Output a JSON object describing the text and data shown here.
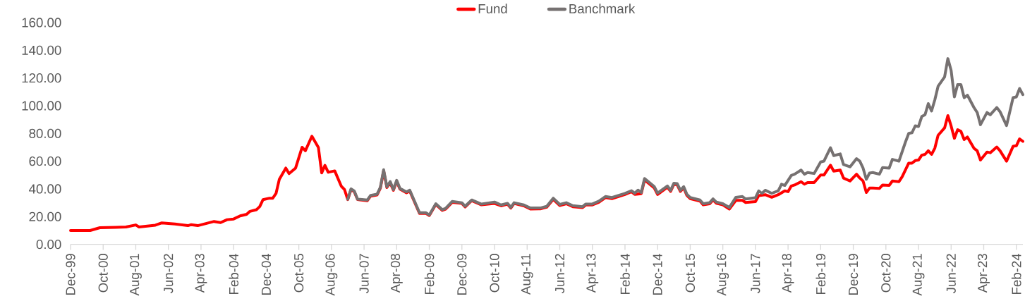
{
  "chart_data": {
    "type": "line",
    "legend": "top",
    "xlim": [
      "1999-12",
      "2024-04"
    ],
    "xticks": [
      {
        "value": "1999-12",
        "label": "Dec-99"
      },
      {
        "value": "2000-10",
        "label": "Oct-00"
      },
      {
        "value": "2001-08",
        "label": "Aug-01"
      },
      {
        "value": "2002-06",
        "label": "Jun-02"
      },
      {
        "value": "2003-04",
        "label": "Apr-03"
      },
      {
        "value": "2004-02",
        "label": "Feb-04"
      },
      {
        "value": "2004-12",
        "label": "Dec-04"
      },
      {
        "value": "2005-10",
        "label": "Oct-05"
      },
      {
        "value": "2006-08",
        "label": "Aug-06"
      },
      {
        "value": "2007-06",
        "label": "Jun-07"
      },
      {
        "value": "2008-04",
        "label": "Apr-08"
      },
      {
        "value": "2009-02",
        "label": "Feb-09"
      },
      {
        "value": "2009-12",
        "label": "Dec-09"
      },
      {
        "value": "2010-10",
        "label": "Oct-10"
      },
      {
        "value": "2011-08",
        "label": "Aug-11"
      },
      {
        "value": "2012-06",
        "label": "Jun-12"
      },
      {
        "value": "2013-04",
        "label": "Apr-13"
      },
      {
        "value": "2014-02",
        "label": "Feb-14"
      },
      {
        "value": "2014-12",
        "label": "Dec-14"
      },
      {
        "value": "2015-10",
        "label": "Oct-15"
      },
      {
        "value": "2016-08",
        "label": "Aug-16"
      },
      {
        "value": "2017-06",
        "label": "Jun-17"
      },
      {
        "value": "2018-04",
        "label": "Apr-18"
      },
      {
        "value": "2019-02",
        "label": "Feb-19"
      },
      {
        "value": "2019-12",
        "label": "Dec-19"
      },
      {
        "value": "2020-10",
        "label": "Oct-20"
      },
      {
        "value": "2021-08",
        "label": "Aug-21"
      },
      {
        "value": "2022-06",
        "label": "Jun-22"
      },
      {
        "value": "2023-04",
        "label": "Apr-23"
      },
      {
        "value": "2024-02",
        "label": "Feb-24"
      }
    ],
    "ylim": [
      0,
      160
    ],
    "yticks": [
      {
        "value": 0,
        "label": "0.00"
      },
      {
        "value": 20,
        "label": "20.00"
      },
      {
        "value": 40,
        "label": "40.00"
      },
      {
        "value": 60,
        "label": "60.00"
      },
      {
        "value": 80,
        "label": "80.00"
      },
      {
        "value": 100,
        "label": "100.00"
      },
      {
        "value": 120,
        "label": "120.00"
      },
      {
        "value": 140,
        "label": "140.00"
      },
      {
        "value": 160,
        "label": "160.00"
      }
    ],
    "series": [
      {
        "name": "Fund",
        "color": "#ff0000",
        "x": [
          "1999-12",
          "2000-06",
          "2000-09",
          "2001-02",
          "2001-05",
          "2001-08",
          "2001-09",
          "2002-02",
          "2002-04",
          "2002-08",
          "2002-12",
          "2003-01",
          "2003-03",
          "2003-08",
          "2003-10",
          "2003-12",
          "2004-02",
          "2004-04",
          "2004-06",
          "2004-07",
          "2004-09",
          "2004-10",
          "2004-11",
          "2005-01",
          "2005-02",
          "2005-03",
          "2005-04",
          "2005-06",
          "2005-07",
          "2005-09",
          "2005-11",
          "2005-12",
          "2006-02",
          "2006-04",
          "2006-05",
          "2006-06",
          "2006-07",
          "2006-09",
          "2006-11",
          "2006-12",
          "2007-01",
          "2007-02",
          "2007-03",
          "2007-04",
          "2007-07",
          "2007-08",
          "2007-10",
          "2007-11",
          "2007-12",
          "2008-01",
          "2008-02",
          "2008-03",
          "2008-04",
          "2008-05",
          "2008-07",
          "2008-08",
          "2008-11",
          "2009-01",
          "2009-02",
          "2009-04",
          "2009-06",
          "2009-07",
          "2009-09",
          "2009-12",
          "2010-01",
          "2010-03",
          "2010-06",
          "2010-10",
          "2010-12",
          "2011-02",
          "2011-03",
          "2011-04",
          "2011-07",
          "2011-09",
          "2011-12",
          "2012-02",
          "2012-04",
          "2012-06",
          "2012-08",
          "2012-10",
          "2013-01",
          "2013-02",
          "2013-04",
          "2013-06",
          "2013-08",
          "2013-10",
          "2014-02",
          "2014-04",
          "2014-05",
          "2014-07",
          "2014-08",
          "2014-11",
          "2014-12",
          "2015-03",
          "2015-04",
          "2015-05",
          "2015-06",
          "2015-07",
          "2015-08",
          "2015-09",
          "2015-10",
          "2016-01",
          "2016-02",
          "2016-04",
          "2016-05",
          "2016-06",
          "2016-08",
          "2016-10",
          "2016-12",
          "2017-02",
          "2017-03",
          "2017-06",
          "2017-07",
          "2017-09",
          "2017-11",
          "2018-01",
          "2018-03",
          "2018-04",
          "2018-05",
          "2018-06",
          "2018-08",
          "2018-09",
          "2018-10",
          "2018-12",
          "2019-02",
          "2019-03",
          "2019-05",
          "2019-06",
          "2019-08",
          "2019-09",
          "2019-11",
          "2020-01",
          "2020-02",
          "2020-03",
          "2020-04",
          "2020-05",
          "2020-06",
          "2020-08",
          "2020-09",
          "2020-11",
          "2020-12",
          "2021-02",
          "2021-03",
          "2021-05",
          "2021-06",
          "2021-07",
          "2021-08",
          "2021-09",
          "2021-10",
          "2021-11",
          "2021-12",
          "2022-01",
          "2022-02",
          "2022-04",
          "2022-05",
          "2022-06",
          "2022-07",
          "2022-08",
          "2022-09",
          "2022-10",
          "2022-11",
          "2023-01",
          "2023-02",
          "2023-03",
          "2023-05",
          "2023-06",
          "2023-08",
          "2023-09",
          "2023-11",
          "2024-01",
          "2024-02",
          "2024-03",
          "2024-04"
        ],
        "values": [
          10,
          10,
          12,
          12.3,
          12.5,
          14,
          12.5,
          13.8,
          15.5,
          14.7,
          13.5,
          14.2,
          13.5,
          16.5,
          15.7,
          17.8,
          18.3,
          20.5,
          21.7,
          23.8,
          25,
          27.2,
          32.2,
          33.3,
          33.3,
          36.7,
          46.8,
          55,
          51,
          55,
          70,
          67.5,
          78,
          69.8,
          51.5,
          57,
          52,
          53,
          42,
          39.5,
          32.3,
          39.5,
          38,
          32.3,
          31.5,
          34.8,
          35.7,
          40.5,
          53,
          41,
          44.5,
          39,
          45.5,
          39.8,
          37.2,
          38.5,
          22.3,
          22.3,
          20.8,
          28.8,
          24.5,
          25.4,
          30.3,
          29.5,
          27,
          31.5,
          28.5,
          29.5,
          27.8,
          29,
          26.2,
          29.5,
          27.8,
          25.5,
          25.6,
          26.8,
          32.5,
          28,
          29.3,
          27.2,
          26.5,
          28.4,
          28.4,
          30.4,
          33.7,
          33,
          36,
          38,
          36,
          36.6,
          46.5,
          40.6,
          36,
          41.2,
          38.2,
          43.3,
          43,
          38.2,
          40.8,
          35.2,
          33,
          31.2,
          28.5,
          29.3,
          32,
          29.7,
          28.5,
          25.5,
          31.7,
          31.7,
          30.2,
          30.8,
          35.1,
          35.8,
          34,
          35.8,
          38.6,
          38,
          42.1,
          42.8,
          45.2,
          43.4,
          44.6,
          44.6,
          50,
          50,
          57.1,
          52.8,
          53.6,
          47.8,
          45.7,
          50.6,
          47.8,
          45.7,
          37.4,
          40.6,
          40.6,
          40.3,
          42.8,
          42.5,
          45.7,
          45.2,
          48.8,
          58.6,
          58.6,
          60.4,
          60.8,
          64.3,
          64.9,
          67.5,
          64.9,
          69.3,
          78.6,
          84,
          92.9,
          85.4,
          76.5,
          82.7,
          81.5,
          75.6,
          77.4,
          69.3,
          67.5,
          60.8,
          66.6,
          66.1,
          70.2,
          67.5,
          60,
          70.7,
          71.1,
          76.1,
          74.3
        ]
      },
      {
        "name": "Banchmark",
        "color": "#767171",
        "x": [
          "2007-01",
          "2007-02",
          "2007-03",
          "2007-04",
          "2007-07",
          "2007-08",
          "2007-10",
          "2007-11",
          "2007-12",
          "2008-01",
          "2008-02",
          "2008-03",
          "2008-04",
          "2008-05",
          "2008-07",
          "2008-08",
          "2008-11",
          "2009-01",
          "2009-02",
          "2009-04",
          "2009-06",
          "2009-07",
          "2009-09",
          "2009-12",
          "2010-01",
          "2010-03",
          "2010-06",
          "2010-10",
          "2010-12",
          "2011-02",
          "2011-03",
          "2011-04",
          "2011-07",
          "2011-09",
          "2011-12",
          "2012-02",
          "2012-04",
          "2012-06",
          "2012-08",
          "2012-10",
          "2013-01",
          "2013-02",
          "2013-04",
          "2013-06",
          "2013-08",
          "2013-10",
          "2014-02",
          "2014-04",
          "2014-05",
          "2014-06",
          "2014-07",
          "2014-08",
          "2014-11",
          "2014-12",
          "2015-03",
          "2015-04",
          "2015-05",
          "2015-06",
          "2015-07",
          "2015-08",
          "2015-09",
          "2015-10",
          "2016-01",
          "2016-02",
          "2016-04",
          "2016-05",
          "2016-06",
          "2016-08",
          "2016-10",
          "2016-12",
          "2017-02",
          "2017-03",
          "2017-06",
          "2017-07",
          "2017-08",
          "2017-09",
          "2017-11",
          "2018-01",
          "2018-02",
          "2018-03",
          "2018-05",
          "2018-06",
          "2018-08",
          "2018-09",
          "2018-10",
          "2018-12",
          "2019-02",
          "2019-03",
          "2019-05",
          "2019-06",
          "2019-08",
          "2019-09",
          "2019-11",
          "2020-01",
          "2020-02",
          "2020-03",
          "2020-04",
          "2020-05",
          "2020-06",
          "2020-08",
          "2020-09",
          "2020-11",
          "2020-12",
          "2021-02",
          "2021-04",
          "2021-05",
          "2021-06",
          "2021-07",
          "2021-08",
          "2021-09",
          "2021-10",
          "2021-11",
          "2021-12",
          "2022-01",
          "2022-02",
          "2022-04",
          "2022-05",
          "2022-06",
          "2022-07",
          "2022-08",
          "2022-09",
          "2022-10",
          "2022-11",
          "2023-01",
          "2023-02",
          "2023-03",
          "2023-05",
          "2023-06",
          "2023-08",
          "2023-09",
          "2023-11",
          "2024-01",
          "2024-02",
          "2024-03",
          "2024-04"
        ],
        "values": [
          32.5,
          40,
          38.5,
          32.6,
          32,
          35.3,
          36.2,
          41.2,
          53.8,
          41.5,
          45.3,
          39.5,
          46.2,
          40.3,
          37.8,
          39.1,
          22.8,
          22.8,
          21.2,
          29.3,
          25,
          25.9,
          30.9,
          30,
          27.5,
          32,
          29,
          30.5,
          28.4,
          29.6,
          26.7,
          30,
          28.4,
          26.2,
          26.2,
          27.4,
          33.3,
          28.8,
          30,
          27.9,
          27.2,
          29.1,
          29.1,
          31.2,
          34.5,
          33.8,
          36.7,
          38.7,
          36.9,
          39.1,
          37.4,
          47.5,
          41.6,
          37,
          42.1,
          39,
          44.1,
          43.8,
          39,
          41.6,
          36,
          33.8,
          32,
          29.3,
          30.1,
          32.8,
          30.5,
          29.3,
          26.6,
          33.9,
          34.5,
          32.7,
          33.6,
          38.5,
          36.8,
          39,
          36.8,
          38.6,
          43.4,
          42.5,
          49.7,
          50.6,
          53.6,
          50.6,
          51.8,
          51.1,
          59.4,
          60,
          69.7,
          64,
          65.2,
          57.6,
          55.9,
          61.8,
          60,
          55,
          46.9,
          51.4,
          51.8,
          50.6,
          55.4,
          55,
          61.3,
          60,
          73.8,
          80,
          80.5,
          85.5,
          85,
          92.2,
          93.5,
          101.5,
          96.2,
          104.2,
          114,
          120.8,
          134,
          125.5,
          106.3,
          115.2,
          115.2,
          105.8,
          107.6,
          98.7,
          95.1,
          86.3,
          95.1,
          93.4,
          98.7,
          95.7,
          85.7,
          105.8,
          106.3,
          112.4,
          108
        ]
      }
    ]
  }
}
